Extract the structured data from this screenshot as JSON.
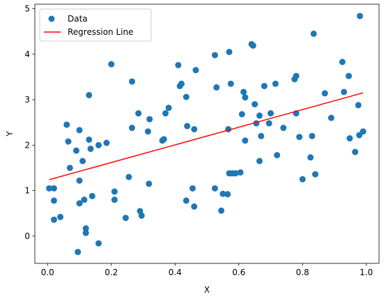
{
  "chart_data": {
    "type": "scatter",
    "title": "",
    "xlabel": "X",
    "ylabel": "Y",
    "xlim": [
      -0.04,
      1.04
    ],
    "ylim": [
      -0.6,
      5.1
    ],
    "xticks": [
      0.0,
      0.2,
      0.4,
      0.6,
      0.8,
      1.0
    ],
    "xtick_labels": [
      "0.0",
      "0.2",
      "0.4",
      "0.6",
      "0.8",
      "1.0"
    ],
    "yticks": [
      0,
      1,
      2,
      3,
      4,
      5
    ],
    "ytick_labels": [
      "0",
      "1",
      "2",
      "3",
      "4",
      "5"
    ],
    "grid": false,
    "legend": {
      "placement": "top-left",
      "entries": [
        "Data",
        "Regression Line"
      ]
    },
    "colors": {
      "points": "#1f77b4",
      "line": "#ff0000"
    },
    "series": [
      {
        "name": "Data",
        "kind": "scatter",
        "x": [
          0.005,
          0.02,
          0.02,
          0.02,
          0.04,
          0.06,
          0.065,
          0.07,
          0.09,
          0.095,
          0.1,
          0.1,
          0.1,
          0.11,
          0.115,
          0.12,
          0.12,
          0.13,
          0.13,
          0.135,
          0.14,
          0.16,
          0.16,
          0.185,
          0.2,
          0.21,
          0.21,
          0.245,
          0.255,
          0.265,
          0.265,
          0.285,
          0.29,
          0.295,
          0.315,
          0.318,
          0.32,
          0.36,
          0.365,
          0.37,
          0.38,
          0.41,
          0.415,
          0.42,
          0.435,
          0.435,
          0.438,
          0.455,
          0.46,
          0.46,
          0.465,
          0.525,
          0.525,
          0.53,
          0.545,
          0.55,
          0.565,
          0.567,
          0.57,
          0.57,
          0.575,
          0.58,
          0.59,
          0.605,
          0.61,
          0.615,
          0.62,
          0.62,
          0.64,
          0.645,
          0.65,
          0.655,
          0.665,
          0.665,
          0.67,
          0.68,
          0.695,
          0.7,
          0.715,
          0.72,
          0.74,
          0.775,
          0.78,
          0.78,
          0.79,
          0.8,
          0.825,
          0.83,
          0.835,
          0.84,
          0.87,
          0.89,
          0.925,
          0.93,
          0.945,
          0.948,
          0.965,
          0.975,
          0.978,
          0.98,
          0.99
        ],
        "y": [
          1.05,
          0.78,
          1.05,
          0.36,
          0.42,
          2.45,
          2.08,
          1.5,
          1.88,
          -0.35,
          0.72,
          1.22,
          2.33,
          1.65,
          0.8,
          0.07,
          0.17,
          3.1,
          2.12,
          1.92,
          0.88,
          2.0,
          -0.16,
          2.05,
          3.78,
          0.8,
          0.98,
          0.4,
          1.3,
          2.38,
          3.4,
          2.7,
          0.55,
          0.45,
          2.3,
          1.15,
          2.57,
          2.1,
          2.13,
          2.7,
          2.82,
          3.76,
          3.3,
          3.35,
          3.06,
          0.78,
          2.42,
          1.05,
          0.65,
          2.35,
          3.65,
          3.98,
          1.05,
          3.27,
          0.56,
          0.93,
          0.92,
          2.35,
          1.38,
          4.05,
          3.35,
          1.38,
          1.38,
          1.4,
          2.68,
          3.17,
          3.05,
          2.1,
          4.22,
          4.19,
          2.9,
          2.48,
          2.65,
          1.65,
          2.2,
          3.3,
          2.48,
          2.7,
          3.35,
          1.78,
          2.38,
          3.45,
          3.52,
          2.7,
          2.18,
          1.25,
          1.73,
          2.2,
          4.45,
          1.36,
          3.14,
          2.6,
          3.83,
          3.17,
          3.52,
          2.15,
          1.85,
          2.88,
          2.22,
          4.84,
          2.3
        ]
      },
      {
        "name": "Regression Line",
        "kind": "line",
        "x": [
          0.005,
          0.99
        ],
        "y": [
          1.24,
          3.15
        ]
      }
    ]
  }
}
